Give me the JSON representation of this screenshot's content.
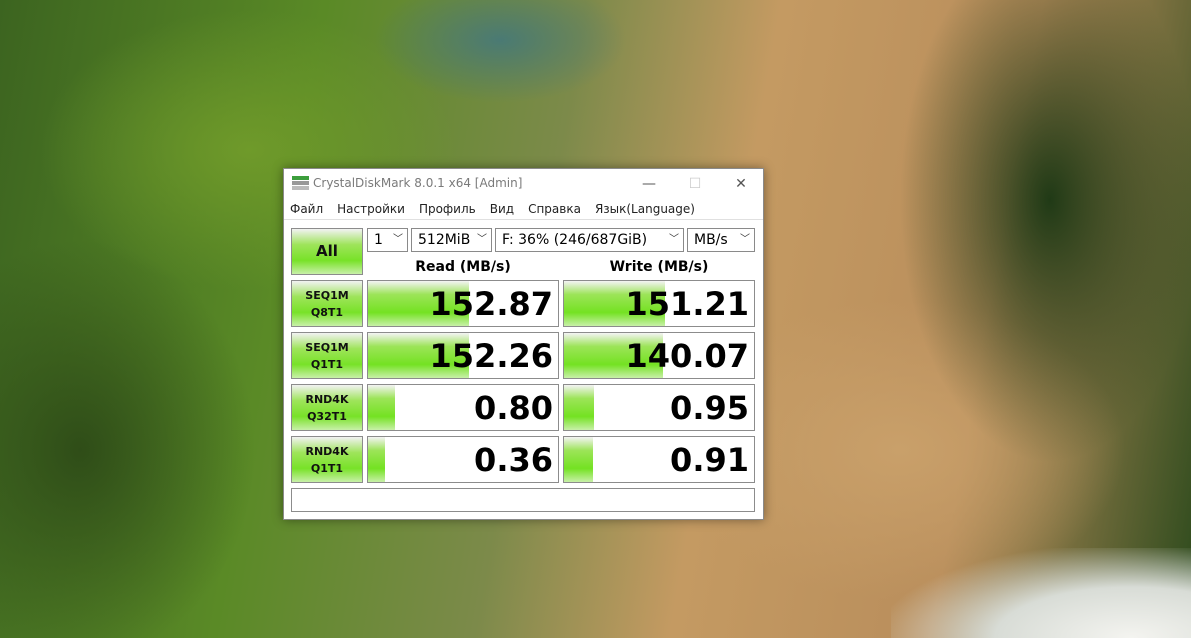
{
  "window": {
    "title": "CrystalDiskMark 8.0.1 x64 [Admin]",
    "minimize": "—",
    "maximize": "☐",
    "close": "✕"
  },
  "menu": [
    "Файл",
    "Настройки",
    "Профиль",
    "Вид",
    "Справка",
    "Язык(Language)"
  ],
  "controls": {
    "all_label": "All",
    "count": "1",
    "size": "512MiB",
    "drive": "F: 36% (246/687GiB)",
    "unit": "MB/s"
  },
  "headers": {
    "read": "Read (MB/s)",
    "write": "Write (MB/s)"
  },
  "rows": [
    {
      "line1": "SEQ1M",
      "line2": "Q8T1",
      "read": "152.87",
      "write": "151.21",
      "read_bar_pct": 53,
      "write_bar_pct": 53
    },
    {
      "line1": "SEQ1M",
      "line2": "Q1T1",
      "read": "152.26",
      "write": "140.07",
      "read_bar_pct": 53,
      "write_bar_pct": 52
    },
    {
      "line1": "RND4K",
      "line2": "Q32T1",
      "read": "0.80",
      "write": "0.95",
      "read_bar_pct": 14,
      "write_bar_pct": 16
    },
    {
      "line1": "RND4K",
      "line2": "Q1T1",
      "read": "0.36",
      "write": "0.91",
      "read_bar_pct": 9,
      "write_bar_pct": 15
    }
  ],
  "status": "",
  "colors": {
    "accent_green": "#74e222"
  }
}
